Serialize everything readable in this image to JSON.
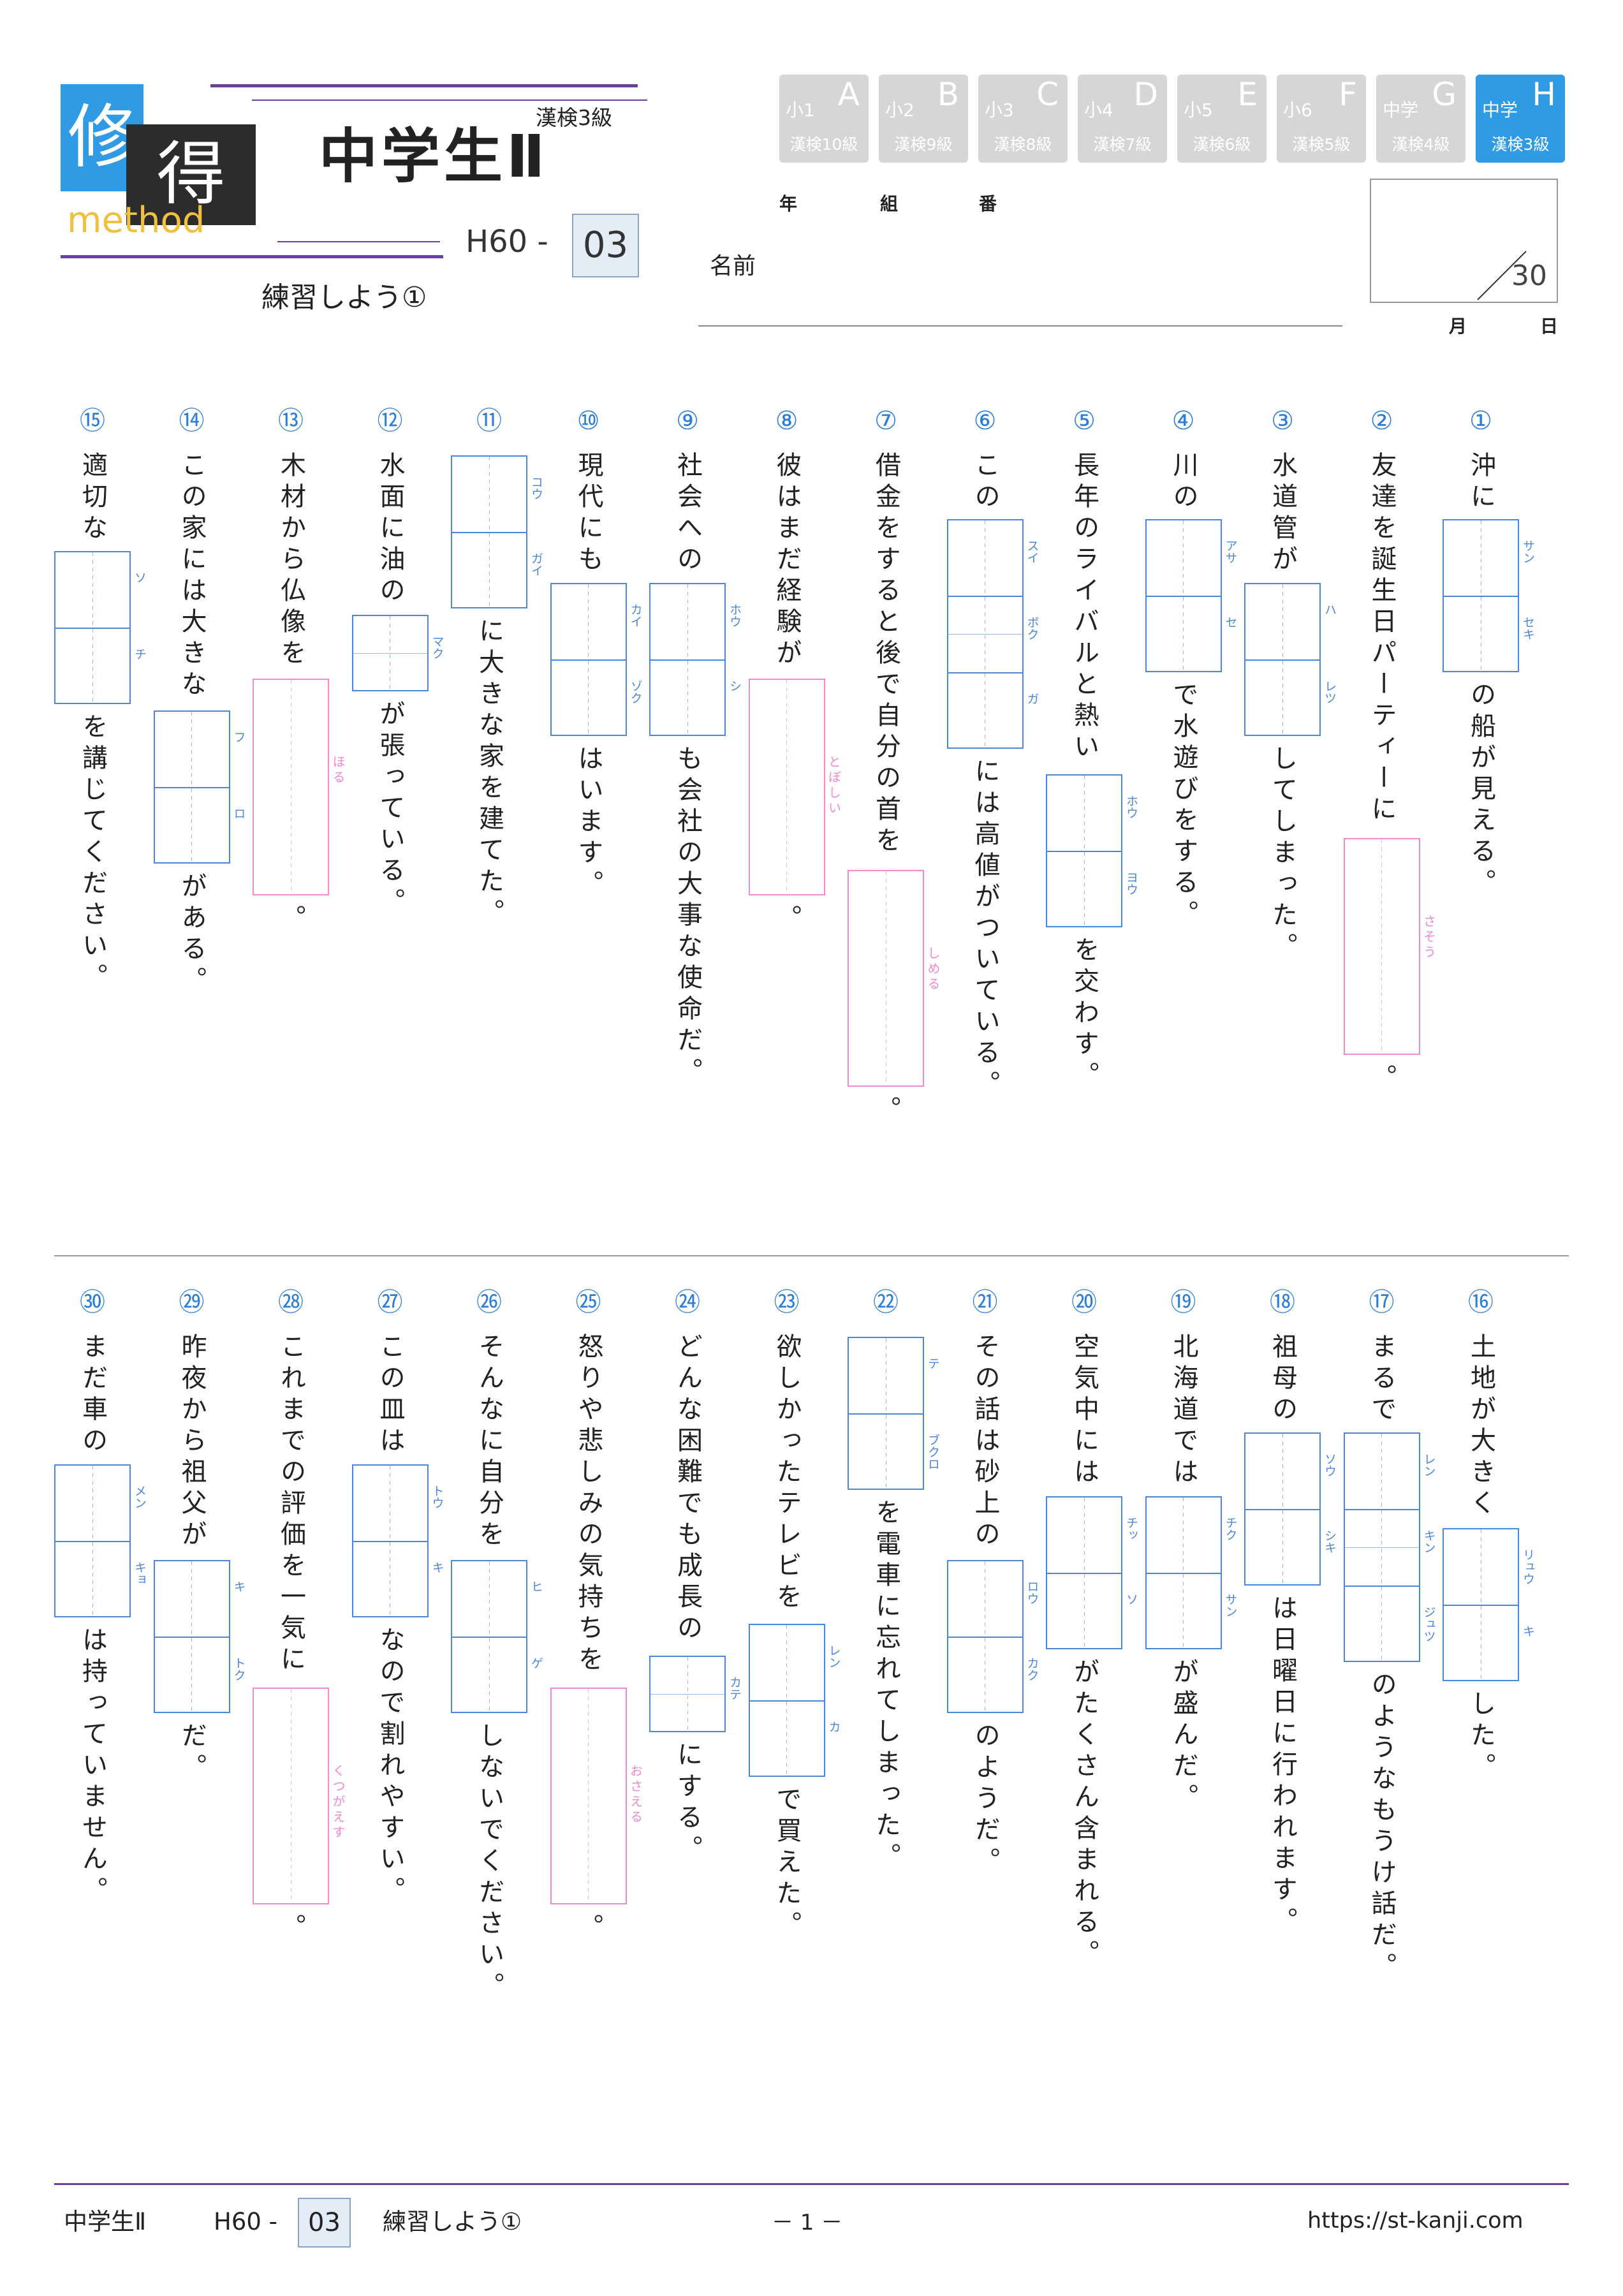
{
  "header": {
    "logo_char1": "修",
    "logo_char2": "得",
    "logo_word": "method",
    "kanken": "漢検3級",
    "title": "中学生Ⅱ",
    "code_prefix": "H60 -",
    "code_num": "03",
    "subtitle": "練習しよう①",
    "levels": [
      {
        "k": "小1",
        "L": "A",
        "g": "漢検10級",
        "active": false
      },
      {
        "k": "小2",
        "L": "B",
        "g": "漢検9級",
        "active": false
      },
      {
        "k": "小3",
        "L": "C",
        "g": "漢検8級",
        "active": false
      },
      {
        "k": "小4",
        "L": "D",
        "g": "漢検7級",
        "active": false
      },
      {
        "k": "小5",
        "L": "E",
        "g": "漢検6級",
        "active": false
      },
      {
        "k": "小6",
        "L": "F",
        "g": "漢検5級",
        "active": false
      },
      {
        "k": "中学",
        "L": "G",
        "g": "漢検4級",
        "active": false
      },
      {
        "k": "中学",
        "L": "H",
        "g": "漢検3級",
        "active": true
      }
    ],
    "nen": "年",
    "kumi": "組",
    "ban": "番",
    "name_label": "名前",
    "score_total": "30",
    "month": "月",
    "day": "日"
  },
  "questions": [
    {
      "n": "①",
      "parts": [
        "沖に",
        "の船が見える。"
      ],
      "box": {
        "type": "k",
        "cells": 2,
        "furi": [
          "サン",
          "セキ"
        ]
      }
    },
    {
      "n": "②",
      "parts": [
        "友達を誕生日パーティーに",
        "。"
      ],
      "box": {
        "type": "h",
        "furi": "さそう"
      }
    },
    {
      "n": "③",
      "parts": [
        "水道管が",
        "してしまった。"
      ],
      "box": {
        "type": "k",
        "cells": 2,
        "furi": [
          "ハ",
          "レツ"
        ]
      }
    },
    {
      "n": "④",
      "parts": [
        "川の",
        "で水遊びをする。"
      ],
      "box": {
        "type": "k",
        "cells": 2,
        "furi": [
          "アサ",
          "セ"
        ]
      }
    },
    {
      "n": "⑤",
      "parts": [
        "長年のライバルと熱い",
        "を交わす。"
      ],
      "box": {
        "type": "k",
        "cells": 2,
        "furi": [
          "ホウ",
          "ヨウ"
        ]
      }
    },
    {
      "n": "⑥",
      "parts": [
        "この",
        "には高値がついている。"
      ],
      "box": {
        "type": "k",
        "cells": 3,
        "furi": [
          "スイ",
          "ボク",
          "ガ"
        ]
      }
    },
    {
      "n": "⑦",
      "parts": [
        "借金をすると後で自分の首を",
        "。"
      ],
      "box": {
        "type": "h",
        "furi": "しめる"
      }
    },
    {
      "n": "⑧",
      "parts": [
        "彼はまだ経験が",
        "。"
      ],
      "box": {
        "type": "h",
        "furi": "とぼしい"
      }
    },
    {
      "n": "⑨",
      "parts": [
        "社会への",
        "も会社の大事な使命だ。"
      ],
      "box": {
        "type": "k",
        "cells": 2,
        "furi": [
          "ホウ",
          "シ"
        ]
      }
    },
    {
      "n": "⑩",
      "parts": [
        "現代にも",
        "はいます。"
      ],
      "box": {
        "type": "k",
        "cells": 2,
        "furi": [
          "カイ",
          "ゾク"
        ]
      }
    },
    {
      "n": "⑪",
      "parts": [
        "",
        "に大きな家を建てた。"
      ],
      "box": {
        "type": "k",
        "cells": 2,
        "furi": [
          "コウ",
          "ガイ"
        ]
      }
    },
    {
      "n": "⑫",
      "parts": [
        "水面に油の",
        "が張っている。"
      ],
      "box": {
        "type": "k",
        "cells": 1,
        "furi": [
          "マク"
        ]
      }
    },
    {
      "n": "⑬",
      "parts": [
        "木材から仏像を",
        "。"
      ],
      "box": {
        "type": "h",
        "furi": "ほる"
      }
    },
    {
      "n": "⑭",
      "parts": [
        "この家には大きな",
        "がある。"
      ],
      "box": {
        "type": "k",
        "cells": 2,
        "furi": [
          "フ",
          "ロ"
        ]
      }
    },
    {
      "n": "⑮",
      "parts": [
        "適切な",
        "を講じてください。"
      ],
      "box": {
        "type": "k",
        "cells": 2,
        "furi": [
          "ソ",
          "チ"
        ]
      }
    },
    {
      "n": "⑯",
      "parts": [
        "土地が大きく",
        "した。"
      ],
      "box": {
        "type": "k",
        "cells": 2,
        "furi": [
          "リュウ",
          "キ"
        ]
      }
    },
    {
      "n": "⑰",
      "parts": [
        "まるで",
        "のようなもうけ話だ。"
      ],
      "box": {
        "type": "k",
        "cells": 3,
        "furi": [
          "レン",
          "キン",
          "ジュツ"
        ]
      }
    },
    {
      "n": "⑱",
      "parts": [
        "祖母の",
        "は日曜日に行われます。"
      ],
      "box": {
        "type": "k",
        "cells": 2,
        "furi": [
          "ソウ",
          "シキ"
        ]
      }
    },
    {
      "n": "⑲",
      "parts": [
        "北海道では",
        "が盛んだ。"
      ],
      "box": {
        "type": "k",
        "cells": 2,
        "furi": [
          "チク",
          "サン"
        ]
      }
    },
    {
      "n": "⑳",
      "parts": [
        "空気中には",
        "がたくさん含まれる。"
      ],
      "box": {
        "type": "k",
        "cells": 2,
        "furi": [
          "チッ",
          "ソ"
        ]
      }
    },
    {
      "n": "㉑",
      "parts": [
        "その話は砂上の",
        "のようだ。"
      ],
      "box": {
        "type": "k",
        "cells": 2,
        "furi": [
          "ロウ",
          "カク"
        ]
      }
    },
    {
      "n": "㉒",
      "parts": [
        "",
        "を電車に忘れてしまった。"
      ],
      "box": {
        "type": "k",
        "cells": 2,
        "furi": [
          "テ",
          "ブクロ"
        ]
      }
    },
    {
      "n": "㉓",
      "parts": [
        "欲しかったテレビを",
        "で買えた。"
      ],
      "box": {
        "type": "k",
        "cells": 2,
        "furi": [
          "レン",
          "カ"
        ]
      }
    },
    {
      "n": "㉔",
      "parts": [
        "どんな困難でも成長の",
        "にする。"
      ],
      "box": {
        "type": "k",
        "cells": 1,
        "furi": [
          "カテ"
        ]
      }
    },
    {
      "n": "㉕",
      "parts": [
        "怒りや悲しみの気持ちを",
        "。"
      ],
      "box": {
        "type": "h",
        "furi": "おさえる"
      }
    },
    {
      "n": "㉖",
      "parts": [
        "そんなに自分を",
        "しないでください。"
      ],
      "box": {
        "type": "k",
        "cells": 2,
        "furi": [
          "ヒ",
          "ゲ"
        ]
      }
    },
    {
      "n": "㉗",
      "parts": [
        "この皿は",
        "なので割れやすい。"
      ],
      "box": {
        "type": "k",
        "cells": 2,
        "furi": [
          "トウ",
          "キ"
        ]
      }
    },
    {
      "n": "㉘",
      "parts": [
        "これまでの評価を一気に",
        "。"
      ],
      "box": {
        "type": "h",
        "furi": "くつがえす"
      }
    },
    {
      "n": "㉙",
      "parts": [
        "昨夜から祖父が",
        "だ。"
      ],
      "box": {
        "type": "k",
        "cells": 2,
        "furi": [
          "キ",
          "トク"
        ]
      }
    },
    {
      "n": "㉚",
      "parts": [
        "まだ車の",
        "は持っていません。"
      ],
      "box": {
        "type": "k",
        "cells": 2,
        "furi": [
          "メン",
          "キョ"
        ]
      }
    }
  ],
  "footer": {
    "title": "中学生Ⅱ",
    "code_prefix": "H60 -",
    "code_num": "03",
    "subtitle": "練習しよう①",
    "page": "－ 1 －",
    "url": "https://st-kanji.com"
  }
}
